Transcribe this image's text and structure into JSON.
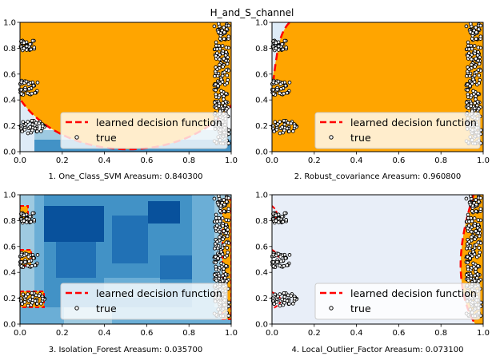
{
  "title": "H_and_S_channel",
  "colors": {
    "orange": "#ffa500",
    "red_dash": "#ff0000",
    "blues": [
      "#f7fbff",
      "#deebf7",
      "#c6dbef",
      "#9ecae1",
      "#6baed6",
      "#4292c6",
      "#2171b5",
      "#08519c",
      "#08306b"
    ]
  },
  "chart_data": [
    {
      "type": "scatter",
      "xlabel": "1. One_Class_SVM  Areasum: 0.840300",
      "xlim": [
        0,
        1
      ],
      "ylim": [
        0,
        1
      ],
      "xticks": [
        "0.0",
        "0.2",
        "0.4",
        "0.6",
        "0.8",
        "1.0"
      ],
      "yticks": [
        "0.0",
        "0.2",
        "0.4",
        "0.6",
        "0.8",
        "1.0"
      ],
      "background": "orange region bounded by red dashed ellipse; blue bands near bottom edge",
      "legend": {
        "position": "lower-right",
        "entries": [
          "learned decision function",
          "true"
        ]
      }
    },
    {
      "type": "scatter",
      "xlabel": "2. Robust_covariance  Areasum: 0.960800",
      "xlim": [
        0,
        1
      ],
      "ylim": [
        0,
        1
      ],
      "xticks": [
        "0.0",
        "0.2",
        "0.4",
        "0.6",
        "0.8",
        "1.0"
      ],
      "yticks": [
        "0.0",
        "0.2",
        "0.4",
        "0.6",
        "0.8",
        "1.0"
      ],
      "background": "orange nearly everywhere; red dashed boundary near top-left corner",
      "legend": {
        "position": "lower-right",
        "entries": [
          "learned decision function",
          "true"
        ]
      }
    },
    {
      "type": "scatter",
      "xlabel": "3. Isolation_Forest  Areasum: 0.035700",
      "xlim": [
        0,
        1
      ],
      "ylim": [
        0,
        1
      ],
      "xticks": [
        "0.0",
        "0.2",
        "0.4",
        "0.6",
        "0.8",
        "1.0"
      ],
      "yticks": [
        "0.0",
        "0.2",
        "0.4",
        "0.6",
        "0.8",
        "1.0"
      ],
      "background": "blue blocky contour fill; small orange areas around point clusters",
      "legend": {
        "position": "lower-right",
        "entries": [
          "learned decision function",
          "true"
        ]
      }
    },
    {
      "type": "scatter",
      "xlabel": "4. Local_Outlier_Factor  Areasum: 0.073100",
      "xlim": [
        0,
        1
      ],
      "ylim": [
        0,
        1
      ],
      "xticks": [
        "0.0",
        "0.2",
        "0.4",
        "0.6",
        "0.8",
        "1.0"
      ],
      "yticks": [
        "0.0",
        "0.2",
        "0.4",
        "0.6",
        "0.8",
        "1.0"
      ],
      "background": "pale blue; orange region only near right edge",
      "legend": {
        "position": "lower-right",
        "entries": [
          "learned decision function",
          "true"
        ]
      }
    }
  ],
  "points": {
    "clusters": [
      {
        "x": [
          0.0,
          0.07
        ],
        "y": [
          0.78,
          0.86
        ]
      },
      {
        "x": [
          0.0,
          0.09
        ],
        "y": [
          0.44,
          0.55
        ]
      },
      {
        "x": [
          0.0,
          0.12
        ],
        "y": [
          0.14,
          0.24
        ]
      },
      {
        "x": [
          0.92,
          0.99
        ],
        "y": [
          0.06,
          0.99
        ]
      }
    ]
  }
}
